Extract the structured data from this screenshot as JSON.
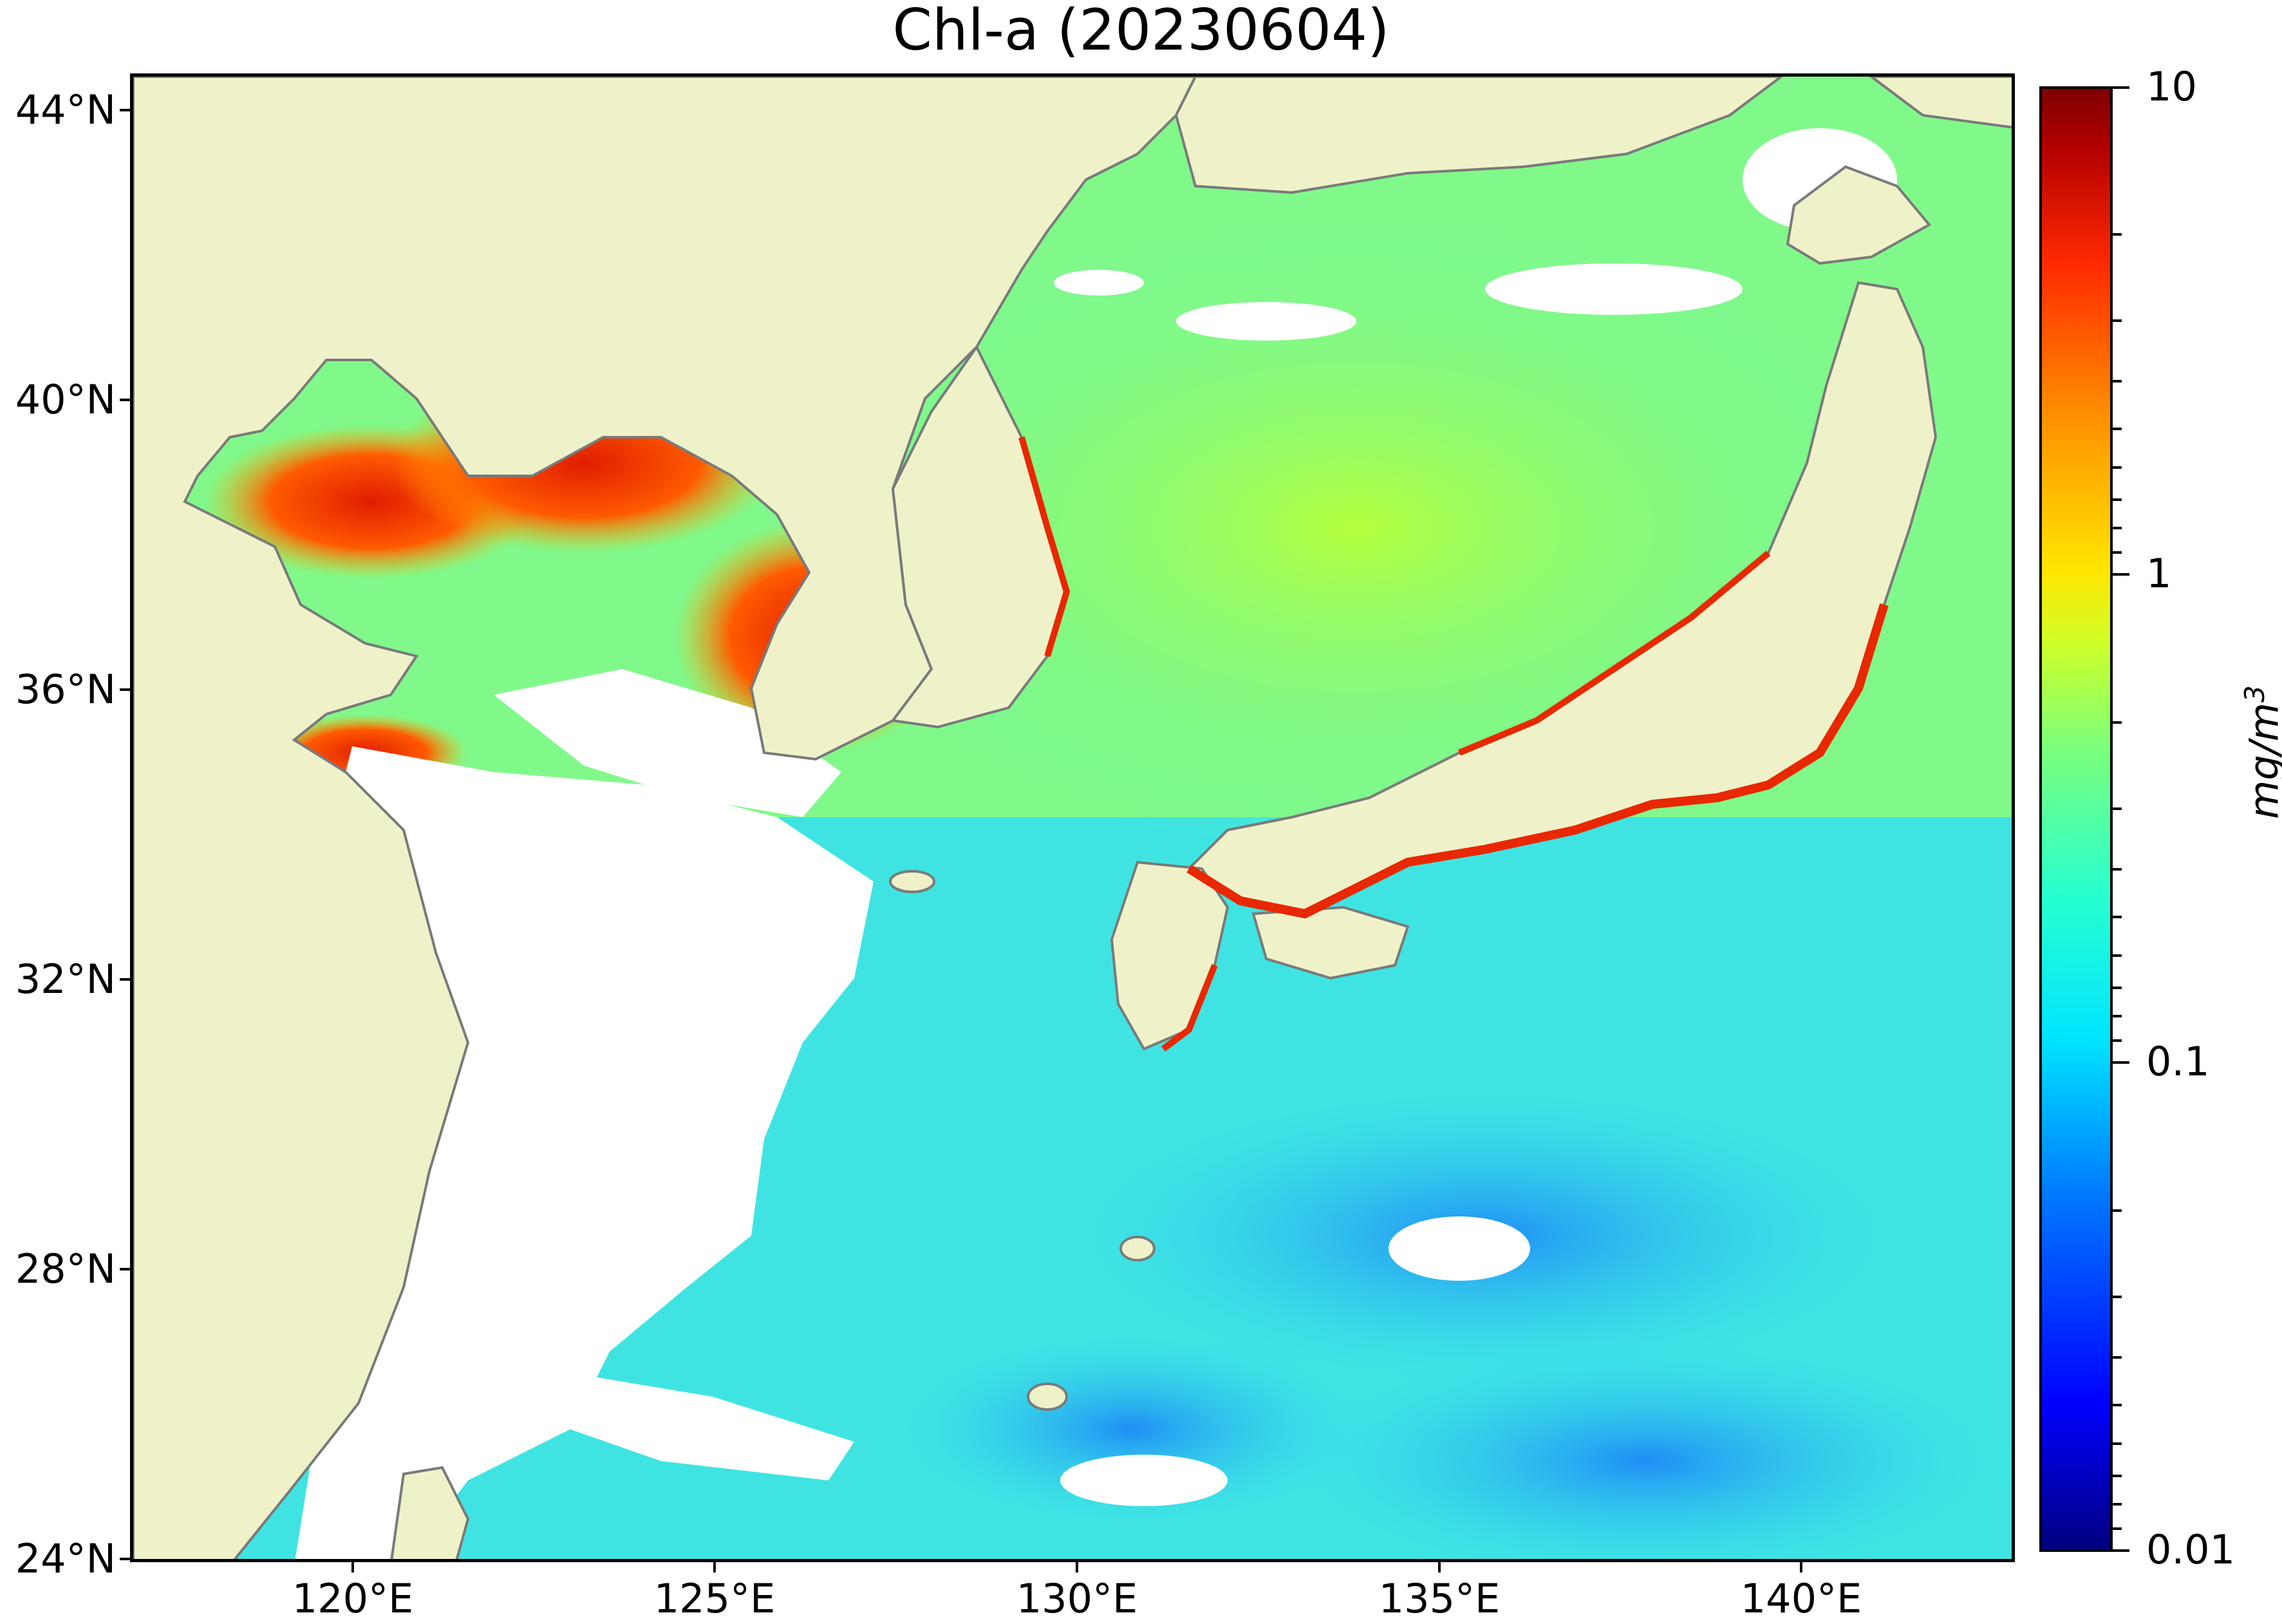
{
  "title": "Chl-a (20230604)",
  "axes": {
    "lat_labels": [
      "44°N",
      "40°N",
      "36°N",
      "32°N",
      "28°N",
      "24°N"
    ],
    "lon_labels": [
      "120°E",
      "125°E",
      "130°E",
      "135°E",
      "140°E"
    ],
    "lat_range": [
      24,
      44.5
    ],
    "lon_range": [
      117,
      143
    ]
  },
  "colorbar": {
    "labels": [
      "10",
      "1",
      "0.1",
      "0.01"
    ],
    "unit_main": "mg/m",
    "unit_exp": "3",
    "scale": "log",
    "range": [
      0.01,
      10
    ],
    "colormap": "jet"
  },
  "colors": {
    "land": "#eff2c9",
    "coastline": "#7a7a7a",
    "no_data": "#ffffff",
    "high_chl": "#e01d00",
    "mid_chl": "#9cff5a",
    "low_chl": "#3ce6ee"
  }
}
